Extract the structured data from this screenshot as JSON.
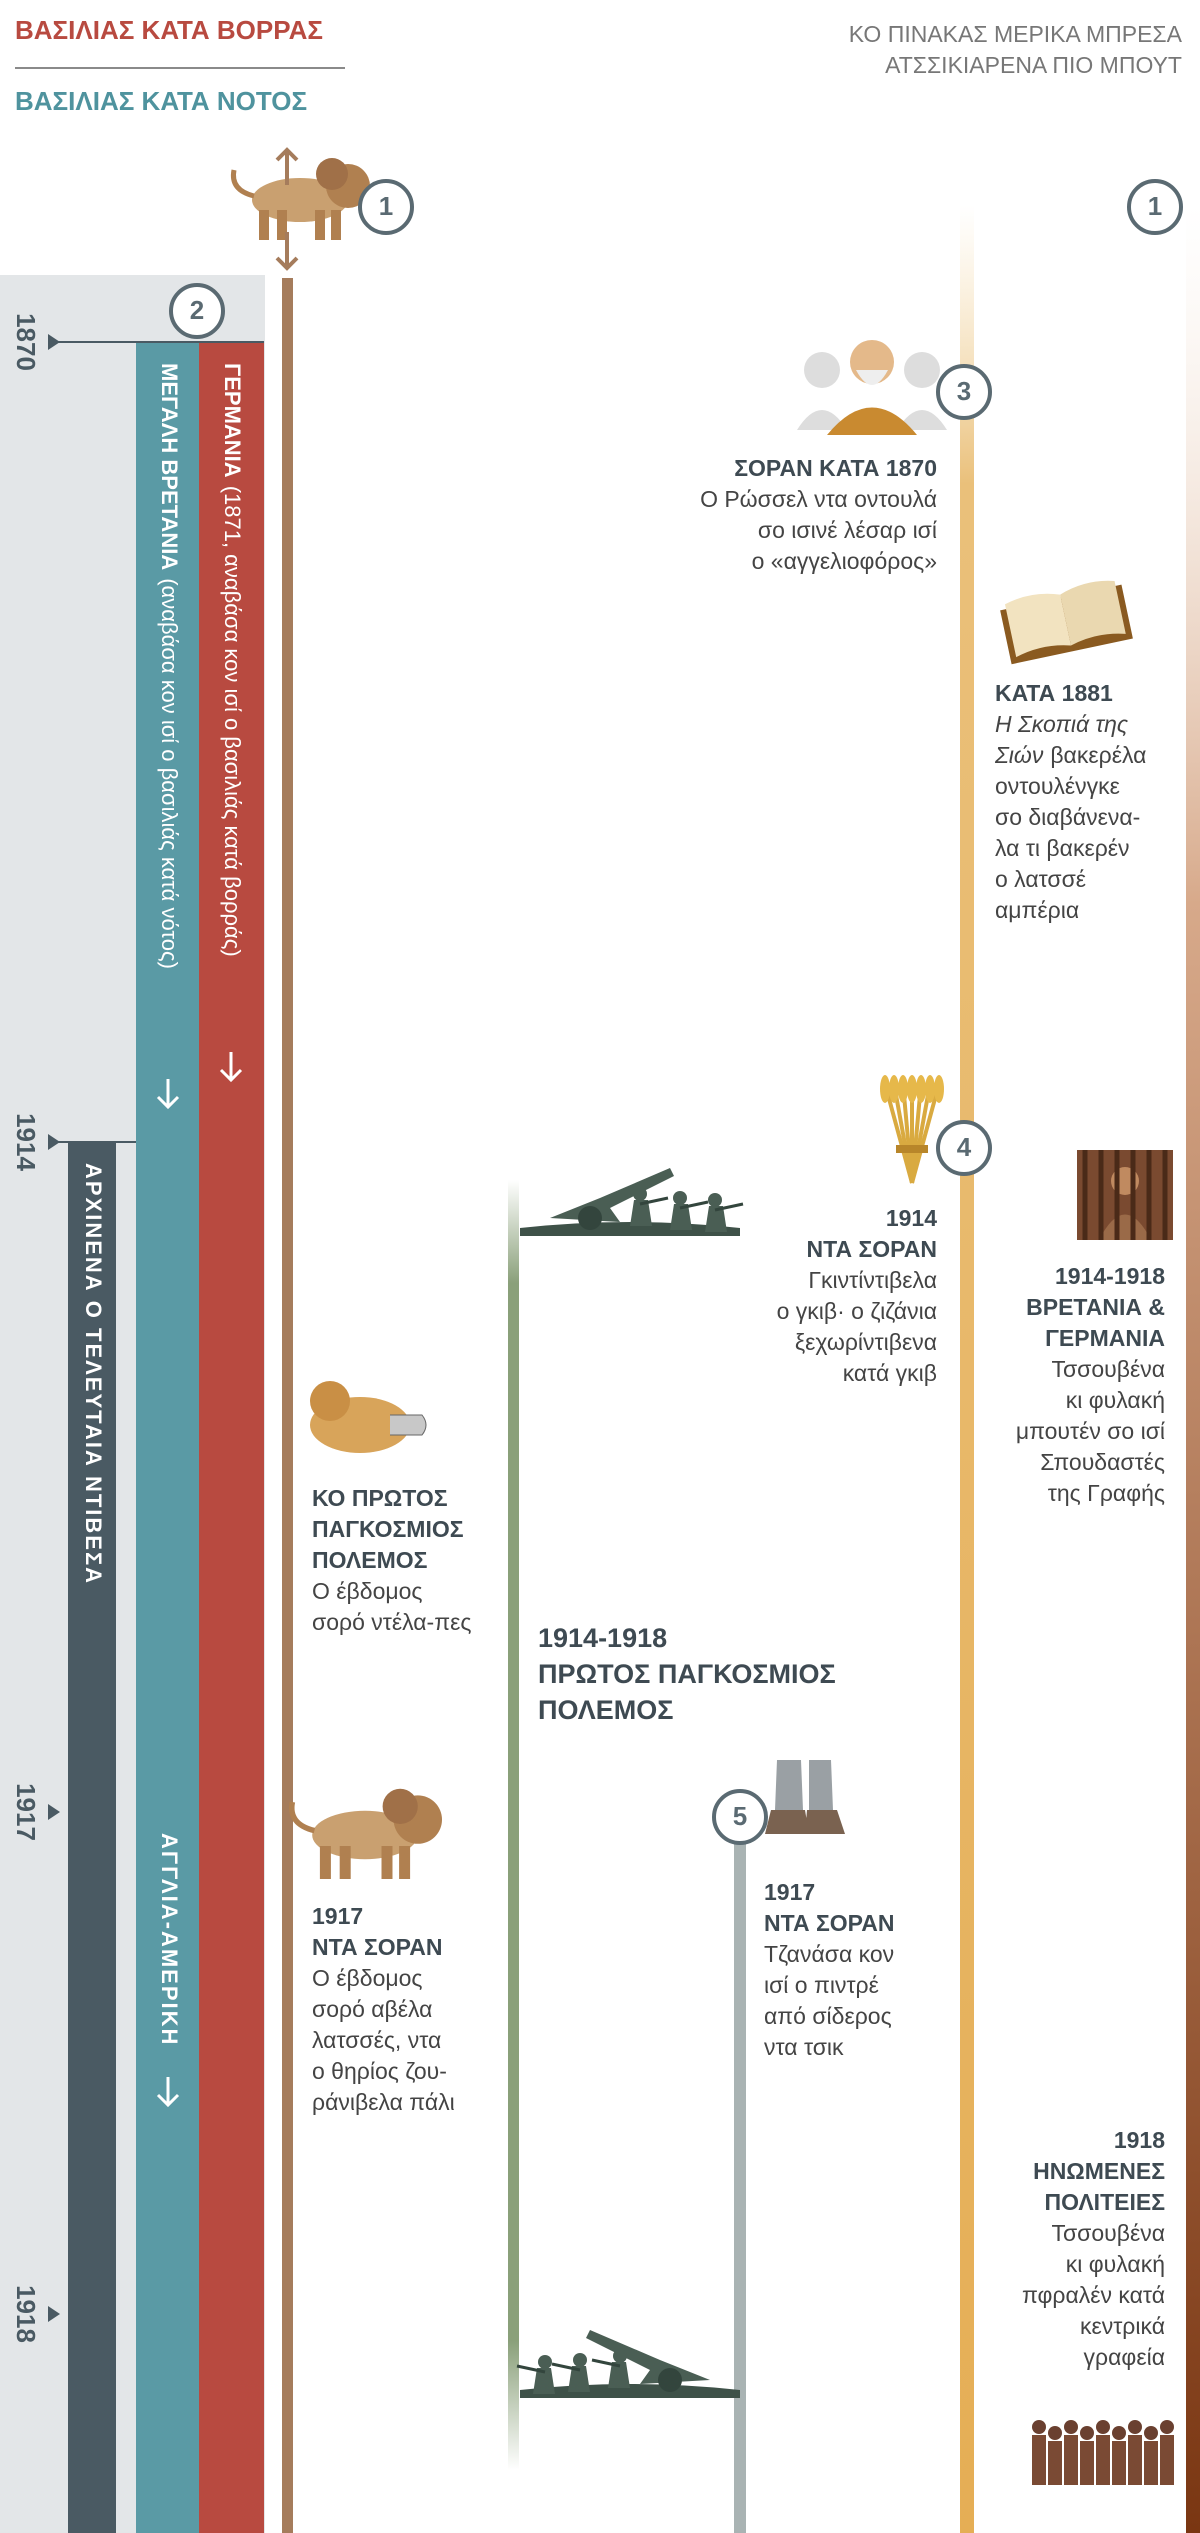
{
  "header": {
    "north": "ΒΑΣΙΛΙΑΣ ΚΑΤΑ ΒΟΡΡΑΣ",
    "south": "ΒΑΣΙΛΙΑΣ ΚΑΤΑ ΝΟΤΟΣ",
    "note": [
      "ΚΟ ΠΙΝΑΚΑΣ ΜΕΡΙΚΑ ΜΠΡΕΣΑ",
      "ΑΤΣΣΙΚΙΑΡΕΝΑ ΠΙΟ ΜΠΟΥΤ"
    ]
  },
  "years": [
    "1870",
    "1914",
    "1917",
    "1918"
  ],
  "badges": [
    "1",
    "2",
    "3",
    "4",
    "5",
    "1"
  ],
  "bars": [
    {
      "name": "ΓΕΡΜΑΝΙΑ",
      "note": "(1871, αναβάσα κον ισί ο βασιλιάς κατά βορράς)"
    },
    {
      "name": "ΜΕΓΑΛΗ ΒΡΕΤΑΝΙΑ",
      "note": "(αναβάσα κον ισί ο βασιλιάς κατά νότος)"
    },
    {
      "name": "ΑΡΧΙΝΕΝΑ Ο ΤΕΛΕΥΤΑΙΑ ΝΤΙΒΕΣΑ"
    },
    {
      "name": "ΑΓΓΛΙΑ-ΑΜΕΡΙΚΗ"
    }
  ],
  "events": [
    {
      "title": [
        "ΣΟΡΑΝ ΚΑΤΑ 1870"
      ],
      "text": [
        "Ο Ρώσσελ ντα οντουλά",
        "σο ισινέ λέσαρ ισί",
        "ο «αγγελιοφόρος»"
      ]
    },
    {
      "title": [
        "ΚΑΤΑ 1881"
      ],
      "italic": [
        "Η Σκοπιά της",
        "Σιών"
      ],
      "text": [
        "βακερέλα",
        "οντουλένγκε",
        "σο διαβάνενα-",
        "λα τι βακερέν",
        "ο λατσσέ",
        "αμπέρια"
      ]
    },
    {
      "title": [
        "1914",
        "ΝΤΑ ΣΟΡΑΝ"
      ],
      "text": [
        "Γκιντίντιβελα",
        "ο γκιβ· ο ζιζάνια",
        "ξεχωρίντιβενα",
        "κατά γκιβ"
      ]
    },
    {
      "title": [
        "1914-1918",
        "ΒΡΕΤΑΝΙΑ &",
        "ΓΕΡΜΑΝΙΑ"
      ],
      "text": [
        "Τσσουβένα",
        "κι φυλακή",
        "μπουτέν σο ισί",
        "Σπουδαστές",
        "της Γραφής"
      ]
    },
    {
      "title": [
        "ΚΟ ΠΡΩΤΟΣ",
        "ΠΑΓΚΟΣΜΙΟΣ",
        "ΠΟΛΕΜΟΣ"
      ],
      "text": [
        "Ο έβδομος",
        "σορό ντέλα-πες"
      ]
    },
    {
      "title": [
        "1914-1918",
        "ΠΡΩΤΟΣ ΠΑΓΚΟΣΜΙΟΣ",
        "ΠΟΛΕΜΟΣ"
      ],
      "text": []
    },
    {
      "title": [
        "1917",
        "ΝΤΑ ΣΟΡΑΝ"
      ],
      "text": [
        "Ο έβδομος",
        "σορό αβέλα",
        "λατσσές, ντα",
        "ο θηρίος ζου-",
        "ράνιβελα πάλι"
      ]
    },
    {
      "title": [
        "1917",
        "ΝΤΑ ΣΟΡΑΝ"
      ],
      "text": [
        "Τζανάσα κον",
        "ισί ο πιντρέ",
        "από σίδερος",
        "ντα τσικ"
      ]
    },
    {
      "title": [
        "1918",
        "ΗΝΩΜΕΝΕΣ",
        "ΠΟΛΙΤΕΙΕΣ"
      ],
      "text": [
        "Τσσουβένα",
        "κι φυλακή",
        "πφραλέν κατά",
        "κεντρικά",
        "γραφεία"
      ]
    }
  ]
}
